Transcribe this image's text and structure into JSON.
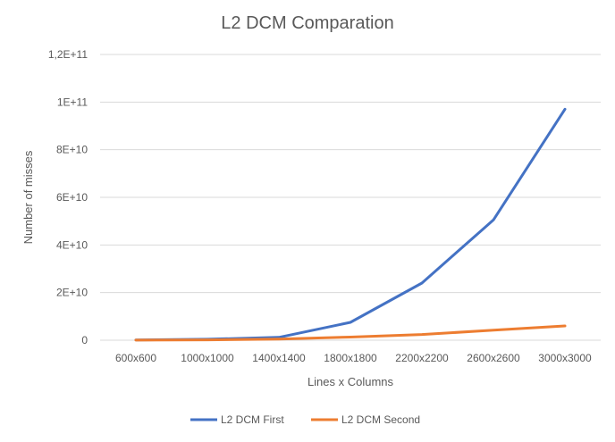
{
  "chart_data": {
    "type": "line",
    "title": "L2 DCM Comparation",
    "xlabel": "Lines x Columns",
    "ylabel": "Number of misses",
    "categories": [
      "600x600",
      "1000x1000",
      "1400x1400",
      "1800x1800",
      "2200x2200",
      "2600x2600",
      "3000x3000"
    ],
    "yticks": [
      {
        "value": 0,
        "label": "0"
      },
      {
        "value": 20000000000,
        "label": "2E+10"
      },
      {
        "value": 40000000000,
        "label": "4E+10"
      },
      {
        "value": 60000000000,
        "label": "6E+10"
      },
      {
        "value": 80000000000,
        "label": "8E+10"
      },
      {
        "value": 100000000000,
        "label": "1E+11"
      },
      {
        "value": 120000000000,
        "label": "1,2E+11"
      }
    ],
    "ylim": [
      0,
      120000000000
    ],
    "grid": true,
    "legend_position": "bottom",
    "series": [
      {
        "name": "L2 DCM First",
        "color": "#4472C4",
        "values": [
          100000000,
          400000000,
          1200000000,
          7500000000,
          24000000000,
          50500000000,
          97000000000
        ]
      },
      {
        "name": "L2 DCM Second",
        "color": "#ED7D31",
        "values": [
          50000000,
          150000000,
          500000000,
          1300000000,
          2400000000,
          4200000000,
          6000000000
        ]
      }
    ]
  }
}
